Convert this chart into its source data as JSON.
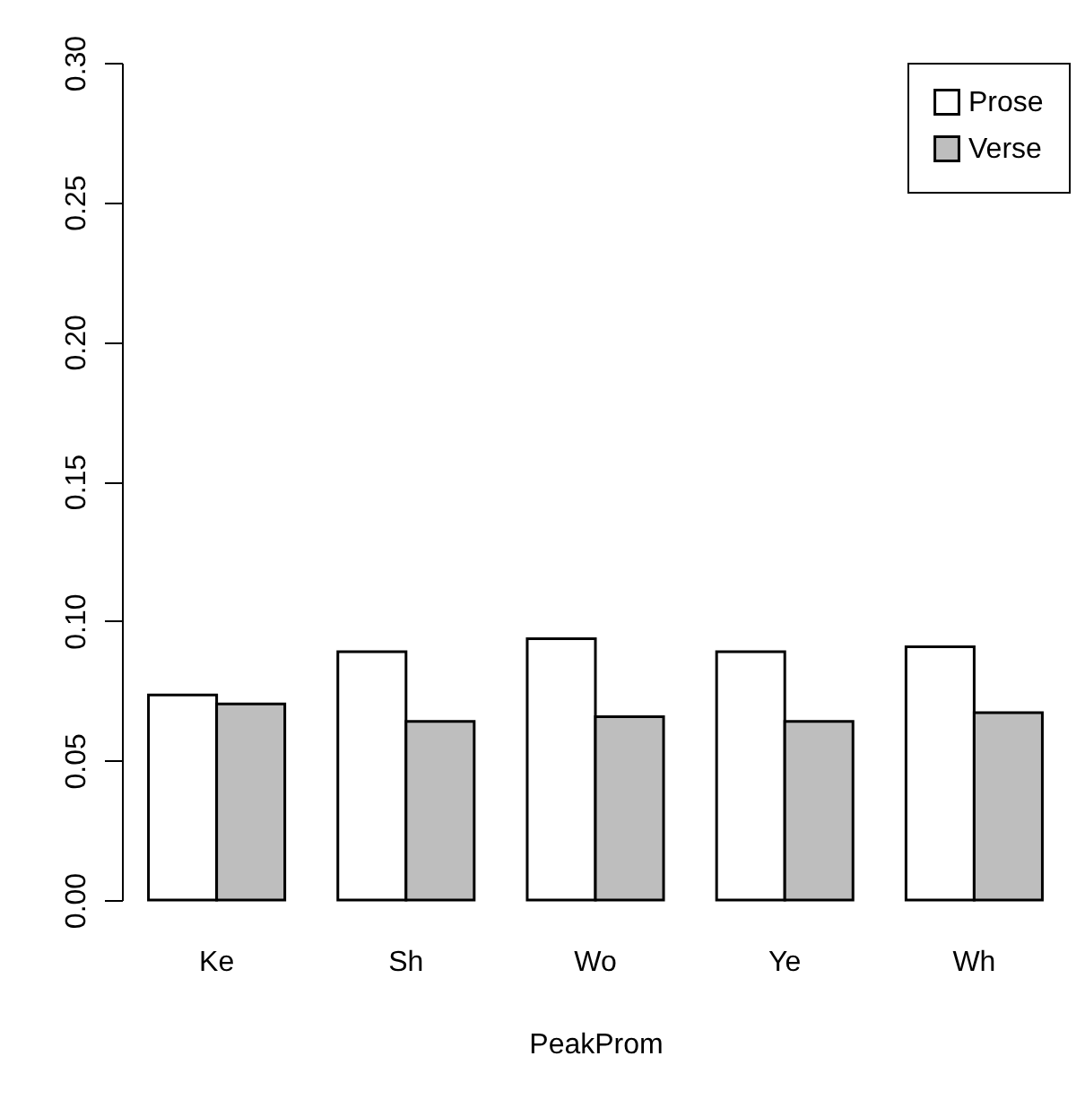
{
  "chart_data": {
    "type": "bar",
    "xlabel": "PeakProm",
    "categories": [
      "Ke",
      "Sh",
      "Wo",
      "Ye",
      "Wh"
    ],
    "series": [
      {
        "name": "Prose",
        "color": "#ffffff",
        "values": [
          0.0735,
          0.089,
          0.0936,
          0.089,
          0.0907
        ]
      },
      {
        "name": "Verse",
        "color": "#bebebe",
        "values": [
          0.0703,
          0.064,
          0.0657,
          0.064,
          0.0671
        ]
      }
    ],
    "ylim": [
      0,
      0.3
    ],
    "yticks": [
      {
        "value": 0,
        "label": "0.00"
      },
      0.05,
      {
        "value": 0.1,
        "label": "0.10"
      },
      0.15,
      {
        "value": 0.2,
        "label": "0.20"
      },
      0.25,
      {
        "value": 0.3,
        "label": "0.30"
      }
    ],
    "grid": false,
    "legend": "top right"
  }
}
